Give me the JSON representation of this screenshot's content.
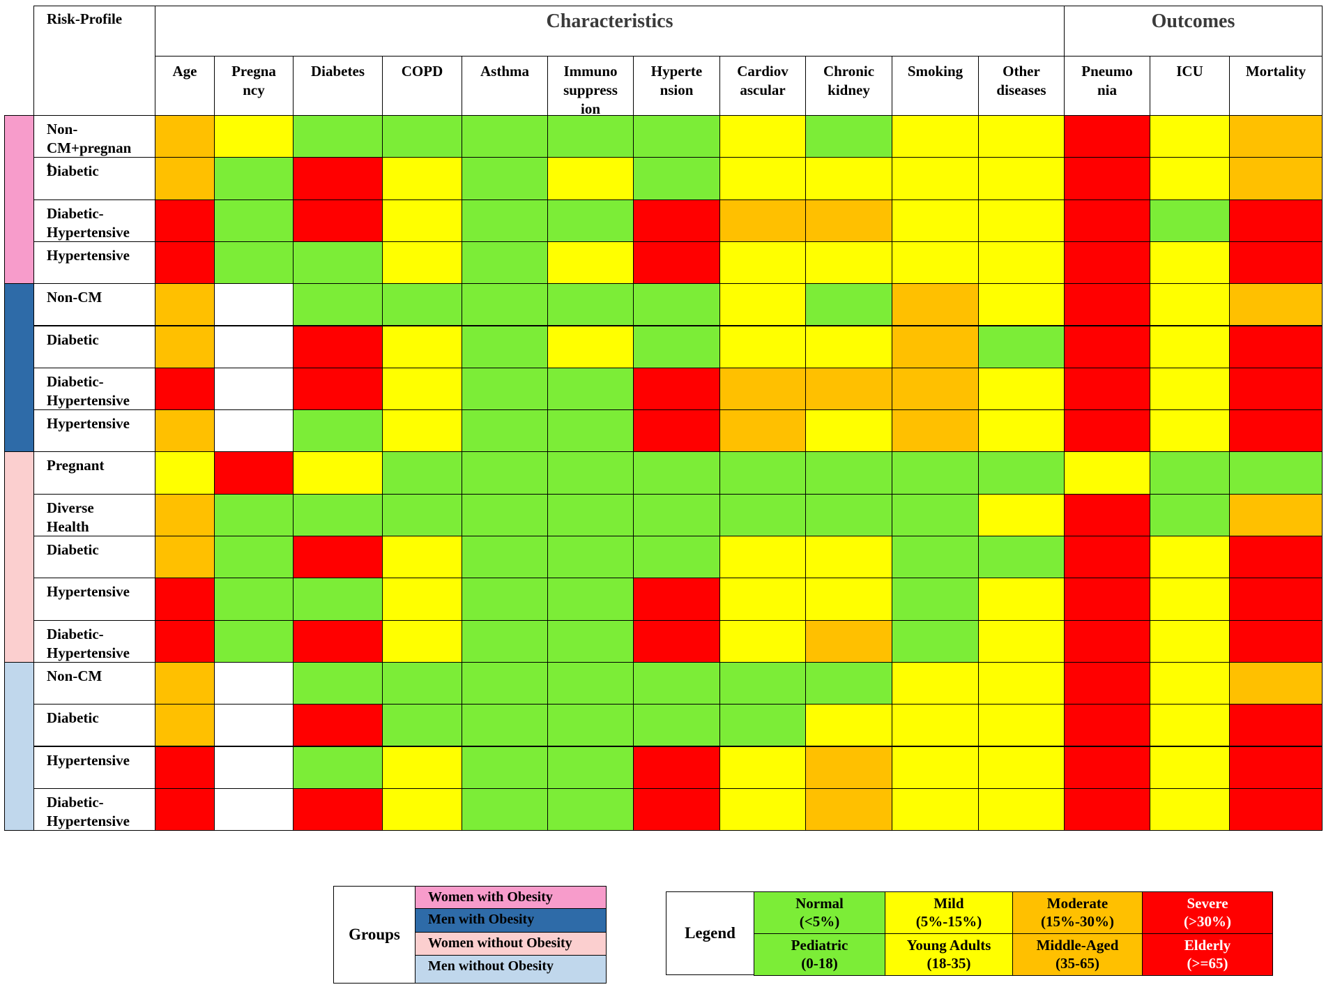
{
  "chart_data": {
    "type": "heatmap",
    "corner_label": "Risk-Profile",
    "column_groups": [
      {
        "label": "Characteristics",
        "span": 11
      },
      {
        "label": "Outcomes",
        "span": 3
      }
    ],
    "columns": [
      "Age",
      "Pregna\nncy",
      "Diabetes",
      "COPD",
      "Asthma",
      "Immuno\nsuppress\nion",
      "Hyperte\nnsion",
      "Cardiov\nascular",
      "Chronic\nkidney",
      "Smoking",
      "Other\ndiseases",
      "Pneumo\nnia",
      "ICU",
      "Mortality"
    ],
    "groups": [
      {
        "name": "Women with Obesity",
        "color": "#f79ccb",
        "rows": [
          {
            "label": "Non-\nCM+pregnan\nt",
            "values": [
              "moderate",
              "mild",
              "normal",
              "normal",
              "normal",
              "normal",
              "normal",
              "mild",
              "normal",
              "mild",
              "mild",
              "severe",
              "mild",
              "moderate"
            ]
          },
          {
            "label": "Diabetic",
            "values": [
              "moderate",
              "normal",
              "severe",
              "mild",
              "normal",
              "mild",
              "normal",
              "mild",
              "mild",
              "mild",
              "mild",
              "severe",
              "mild",
              "moderate"
            ]
          },
          {
            "label": "Diabetic-\nHypertensive",
            "values": [
              "severe",
              "normal",
              "severe",
              "mild",
              "normal",
              "normal",
              "severe",
              "moderate",
              "moderate",
              "mild",
              "mild",
              "severe",
              "normal",
              "severe"
            ]
          },
          {
            "label": "Hypertensive",
            "values": [
              "severe",
              "normal",
              "normal",
              "mild",
              "normal",
              "mild",
              "severe",
              "mild",
              "mild",
              "mild",
              "mild",
              "severe",
              "mild",
              "severe"
            ]
          }
        ]
      },
      {
        "name": "Men with Obesity",
        "color": "#2e6ba8",
        "rows": [
          {
            "label": "Non-CM",
            "values": [
              "moderate",
              "none",
              "normal",
              "normal",
              "normal",
              "normal",
              "normal",
              "mild",
              "normal",
              "moderate",
              "mild",
              "severe",
              "mild",
              "moderate"
            ]
          },
          {
            "label": "Diabetic",
            "values": [
              "moderate",
              "none",
              "severe",
              "mild",
              "normal",
              "mild",
              "normal",
              "mild",
              "mild",
              "moderate",
              "normal",
              "severe",
              "mild",
              "severe"
            ]
          },
          {
            "label": "Diabetic-\nHypertensive",
            "values": [
              "severe",
              "none",
              "severe",
              "mild",
              "normal",
              "normal",
              "severe",
              "moderate",
              "moderate",
              "moderate",
              "mild",
              "severe",
              "mild",
              "severe"
            ]
          },
          {
            "label": "Hypertensive",
            "values": [
              "moderate",
              "none",
              "normal",
              "mild",
              "normal",
              "normal",
              "severe",
              "moderate",
              "mild",
              "moderate",
              "mild",
              "severe",
              "mild",
              "severe"
            ]
          }
        ]
      },
      {
        "name": "Women without Obesity",
        "color": "#fbcfcf",
        "rows": [
          {
            "label": "Pregnant",
            "values": [
              "mild",
              "severe",
              "mild",
              "normal",
              "normal",
              "normal",
              "normal",
              "normal",
              "normal",
              "normal",
              "normal",
              "mild",
              "normal",
              "normal"
            ]
          },
          {
            "label": "Diverse\nHealth",
            "values": [
              "moderate",
              "normal",
              "normal",
              "normal",
              "normal",
              "normal",
              "normal",
              "normal",
              "normal",
              "normal",
              "mild",
              "severe",
              "normal",
              "moderate"
            ]
          },
          {
            "label": "Diabetic",
            "values": [
              "moderate",
              "normal",
              "severe",
              "mild",
              "normal",
              "normal",
              "normal",
              "mild",
              "mild",
              "normal",
              "normal",
              "severe",
              "mild",
              "severe"
            ]
          },
          {
            "label": "Hypertensive",
            "values": [
              "severe",
              "normal",
              "normal",
              "mild",
              "normal",
              "normal",
              "severe",
              "mild",
              "mild",
              "normal",
              "mild",
              "severe",
              "mild",
              "severe"
            ]
          },
          {
            "label": "Diabetic-\nHypertensive",
            "values": [
              "severe",
              "normal",
              "severe",
              "mild",
              "normal",
              "normal",
              "severe",
              "mild",
              "moderate",
              "normal",
              "mild",
              "severe",
              "mild",
              "severe"
            ]
          }
        ]
      },
      {
        "name": "Men without Obesity",
        "color": "#c0d7ec",
        "rows": [
          {
            "label": "Non-CM",
            "values": [
              "moderate",
              "none",
              "normal",
              "normal",
              "normal",
              "normal",
              "normal",
              "normal",
              "normal",
              "mild",
              "mild",
              "severe",
              "mild",
              "moderate"
            ]
          },
          {
            "label": "Diabetic",
            "values": [
              "moderate",
              "none",
              "severe",
              "normal",
              "normal",
              "normal",
              "normal",
              "normal",
              "mild",
              "mild",
              "mild",
              "severe",
              "mild",
              "severe"
            ]
          },
          {
            "label": "Hypertensive",
            "values": [
              "severe",
              "none",
              "normal",
              "mild",
              "normal",
              "normal",
              "severe",
              "mild",
              "moderate",
              "mild",
              "mild",
              "severe",
              "mild",
              "severe"
            ]
          },
          {
            "label": "Diabetic-\nHypertensive",
            "values": [
              "severe",
              "none",
              "severe",
              "mild",
              "normal",
              "normal",
              "severe",
              "mild",
              "moderate",
              "mild",
              "mild",
              "severe",
              "mild",
              "severe"
            ]
          }
        ]
      }
    ],
    "level_colors": {
      "normal": "#7ced37",
      "mild": "#ffff00",
      "moderate": "#ffc000",
      "severe": "#ff0000",
      "none": "#ffffff"
    },
    "groups_legend_title": "Groups",
    "legend": {
      "title": "Legend",
      "levels": [
        {
          "key": "normal",
          "line1": "Normal",
          "line2": "(<5%)",
          "line3": "Pediatric",
          "line4": "(0-18)",
          "text_color": "#000000"
        },
        {
          "key": "mild",
          "line1": "Mild",
          "line2": "(5%-15%)",
          "line3": "Young Adults",
          "line4": "(18-35)",
          "text_color": "#000000"
        },
        {
          "key": "moderate",
          "line1": "Moderate",
          "line2": "(15%-30%)",
          "line3": "Middle-Aged",
          "line4": "(35-65)",
          "text_color": "#000000"
        },
        {
          "key": "severe",
          "line1": "Severe",
          "line2": "(>30%)",
          "line3": "Elderly",
          "line4": "(>=65)",
          "text_color": "#ffffff"
        }
      ]
    }
  }
}
